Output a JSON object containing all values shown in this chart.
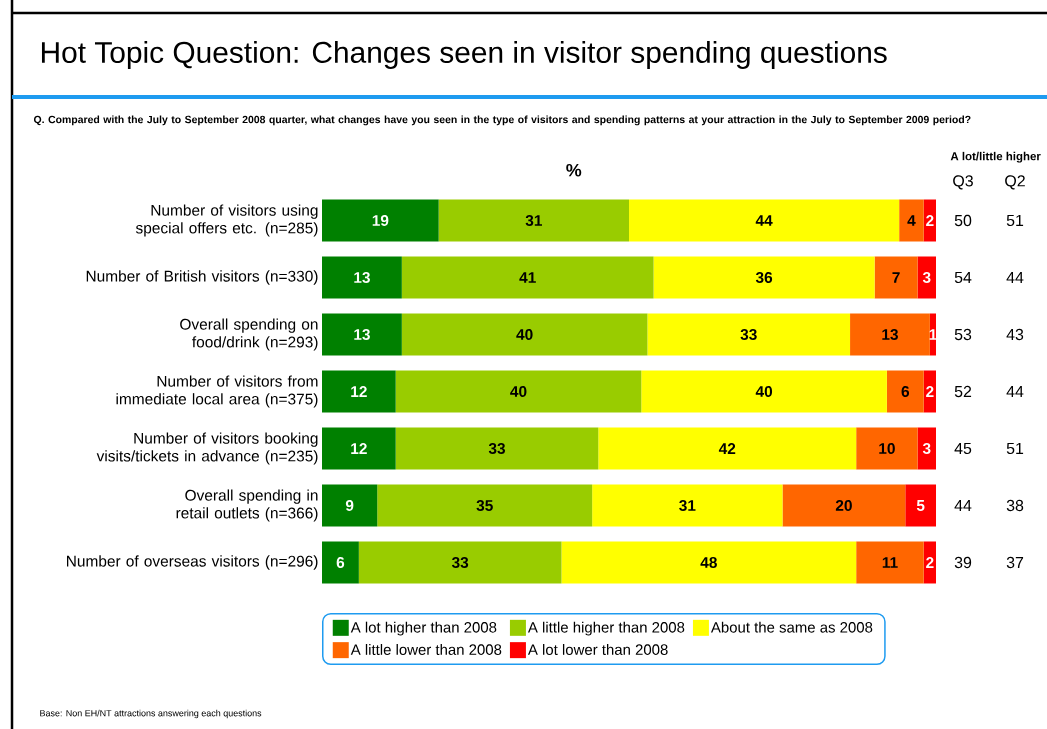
{
  "chart_data": [
    {
      "type": "bar",
      "orientation": "horizontal",
      "stacked": true,
      "title": "Hot Topic Question: Changes seen in visitor spending questions",
      "subtitle": "Q.  Compared with the July to September 2008 quarter, what changes have you seen in the type of visitors and spending patterns at your attraction in the July to September 2009 period?",
      "xlabel": "%",
      "categories": [
        "Number of visitors using special offers etc. (n=285)",
        "Number of British visitors (n=330)",
        "Overall spending on food/drink (n=293)",
        "Number of visitors from immediate local area (n=375)",
        "Number of visitors booking visits/tickets in advance (n=235)",
        "Overall spending in retail outlets (n=366)",
        "Number of overseas visitors (n=296)"
      ],
      "series": [
        {
          "name": "A lot higher than 2008",
          "color": "#008000",
          "values": [
            19,
            13,
            13,
            12,
            12,
            9,
            6
          ]
        },
        {
          "name": "A little higher than 2008",
          "color": "#99cc00",
          "values": [
            31,
            41,
            40,
            40,
            33,
            35,
            33
          ]
        },
        {
          "name": "About the same as 2008",
          "color": "#ffff00",
          "values": [
            44,
            36,
            33,
            40,
            42,
            31,
            48
          ]
        },
        {
          "name": "A little lower than 2008",
          "color": "#ff6600",
          "values": [
            4,
            7,
            13,
            6,
            10,
            20,
            11
          ]
        },
        {
          "name": "A lot lower than 2008",
          "color": "#ff0000",
          "values": [
            2,
            3,
            1,
            2,
            3,
            5,
            2
          ]
        }
      ],
      "data_labels": true,
      "legend": "bottom",
      "annotations": [
        "Base:  Non EH/NT attractions answering each questions"
      ]
    },
    {
      "type": "heatmap",
      "title": "A lot/little higher",
      "data_labels": true,
      "categories": [
        "Q3",
        "Q2"
      ],
      "y_categories": [
        null,
        null,
        null,
        null,
        null,
        null,
        null
      ],
      "cells": [
        [
          50,
          51
        ],
        [
          54,
          44
        ],
        [
          53,
          43
        ],
        [
          52,
          44
        ],
        [
          45,
          51
        ],
        [
          44,
          38
        ],
        [
          39,
          37
        ]
      ]
    }
  ]
}
